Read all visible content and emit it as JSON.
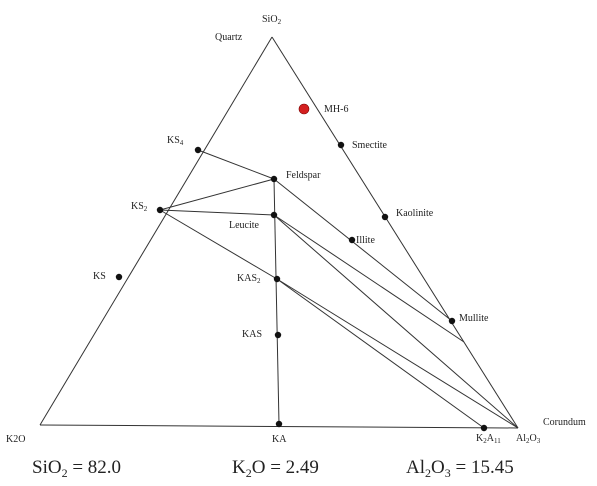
{
  "vertices": {
    "top": {
      "formula_main": "SiO",
      "formula_sub": "2",
      "mineral": "Quartz"
    },
    "left": {
      "label": "K2O"
    },
    "right": {
      "formula_main": "Al",
      "formula_sub1": "2",
      "formula_mid": "O",
      "formula_sub2": "3",
      "mineral": "Corundum"
    }
  },
  "points": [
    {
      "id": "ks4",
      "main": "KS",
      "sub": "4"
    },
    {
      "id": "ks2",
      "main": "KS",
      "sub": "2"
    },
    {
      "id": "ks",
      "main": "KS"
    },
    {
      "id": "feldspar",
      "main": "Feldspar"
    },
    {
      "id": "leucite",
      "main": "Leucite"
    },
    {
      "id": "kas2",
      "main": "KAS",
      "sub": "2"
    },
    {
      "id": "kas",
      "main": "KAS"
    },
    {
      "id": "ka",
      "main": "KA"
    },
    {
      "id": "k2a11",
      "main": "K",
      "sub": "2",
      "main2": "A",
      "sub2": "11"
    },
    {
      "id": "smectite",
      "main": "Smectite"
    },
    {
      "id": "kaolinite",
      "main": "Kaolinite"
    },
    {
      "id": "illite",
      "main": "Illite"
    },
    {
      "id": "mullite",
      "main": "Mullite"
    }
  ],
  "sample": {
    "label": "MH-6",
    "color": "#d42020"
  },
  "composition": {
    "sio2": {
      "main": "SiO",
      "sub": "2",
      "value": " = 82.0"
    },
    "k2o": {
      "main": "K",
      "sub": "2",
      "main2": "O",
      "value": " = 2.49"
    },
    "al2o3": {
      "main": "Al",
      "sub": "2",
      "main2": "O",
      "sub2": "3",
      "value": " = 15.45"
    }
  }
}
